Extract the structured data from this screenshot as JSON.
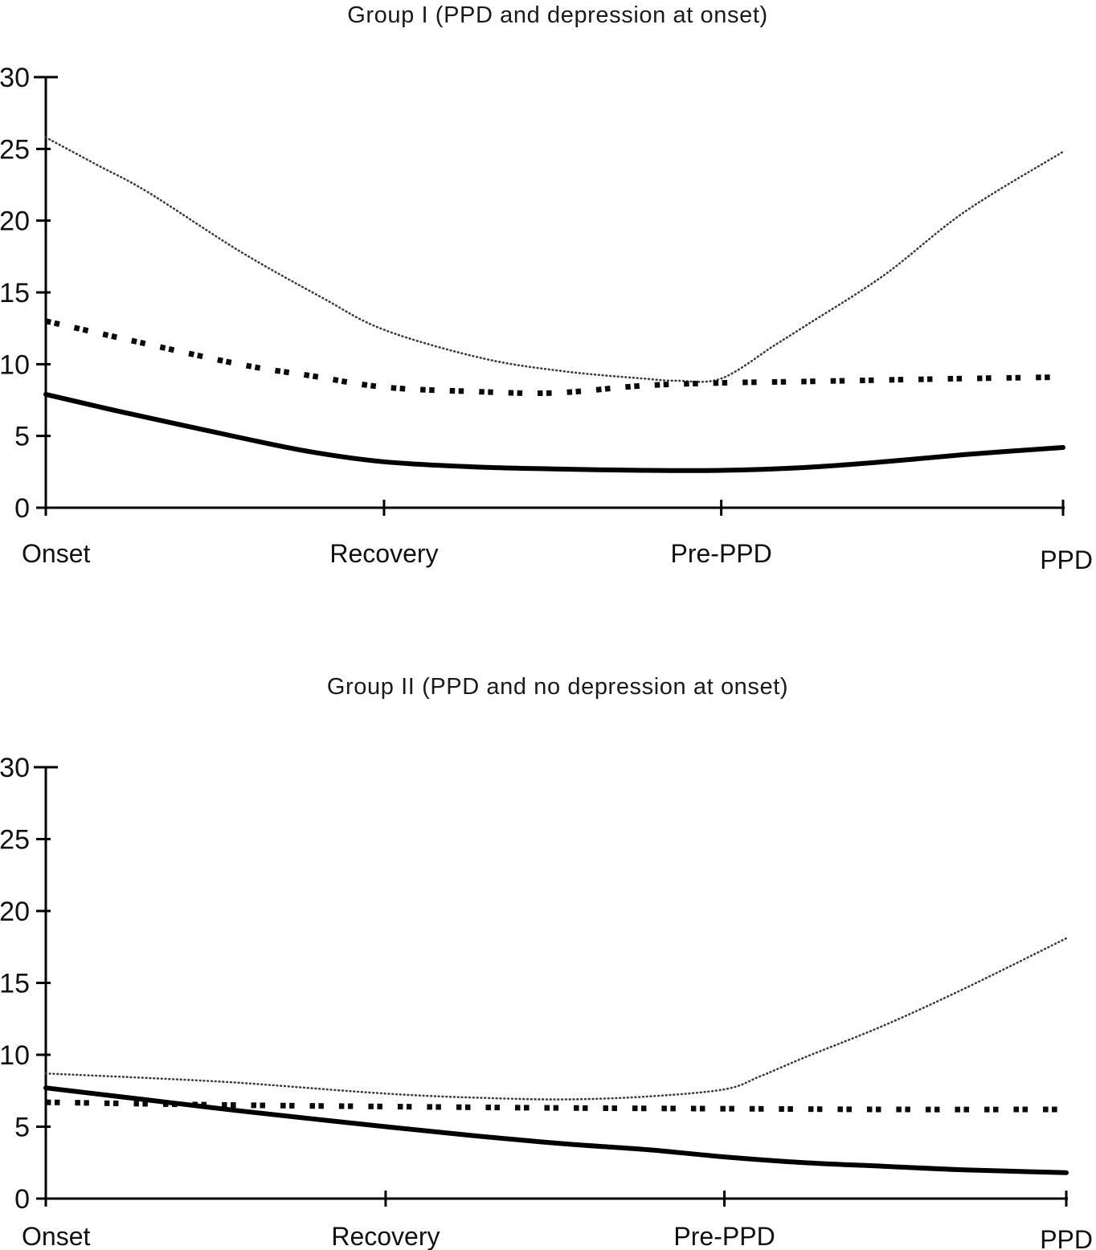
{
  "figure": {
    "description": "Two stacked line charts comparing symptom score trajectories",
    "background": "#ffffff"
  },
  "colors": {
    "axis": "#000000",
    "dotted_series": "#3d3d3d",
    "dashed_series": "#0b0b0b",
    "solid_series": "#000000",
    "background": "#ffffff"
  },
  "chart_data": [
    {
      "type": "line",
      "title": "Group I (PPD and depression at onset)",
      "xlabel": "",
      "ylabel": "",
      "ylim": [
        0,
        30
      ],
      "yticks": [
        0,
        5,
        10,
        15,
        20,
        25,
        30
      ],
      "grid": false,
      "legend": "none",
      "x_axis_labels": [
        {
          "label": "Onset",
          "pos": 0
        },
        {
          "label": "Recovery",
          "pos": 0.3325
        },
        {
          "label": "Pre-PPD",
          "pos": 0.664
        },
        {
          "label": "PPD",
          "pos": 1
        }
      ],
      "series": [
        {
          "name": "dotted curve",
          "style": "dotted",
          "points": [
            [
              0,
              25.8
            ],
            [
              0.05,
              23.9
            ],
            [
              0.1,
              22.0
            ],
            [
              0.19,
              17.9
            ],
            [
              0.27,
              14.7
            ],
            [
              0.3325,
              12.4
            ],
            [
              0.43,
              10.4
            ],
            [
              0.51,
              9.5
            ],
            [
              0.587,
              9.0
            ],
            [
              0.62,
              8.85
            ],
            [
              0.664,
              9.0
            ],
            [
              0.716,
              11.3
            ],
            [
              0.745,
              12.6
            ],
            [
              0.824,
              16.2
            ],
            [
              0.903,
              20.6
            ],
            [
              1,
              24.8
            ]
          ]
        },
        {
          "name": "dashed x curve",
          "style": "dashed",
          "points": [
            [
              0,
              13.0
            ],
            [
              0.081,
              11.7
            ],
            [
              0.19,
              10.0
            ],
            [
              0.26,
              9.2
            ],
            [
              0.3325,
              8.4
            ],
            [
              0.42,
              8.1
            ],
            [
              0.5,
              8.0
            ],
            [
              0.587,
              8.5
            ],
            [
              0.664,
              8.7
            ],
            [
              0.75,
              8.8
            ],
            [
              0.824,
              8.9
            ],
            [
              0.903,
              9.0
            ],
            [
              1,
              9.1
            ]
          ]
        },
        {
          "name": "solid curve",
          "style": "solid",
          "points": [
            [
              0,
              7.9
            ],
            [
              0.073,
              6.7
            ],
            [
              0.19,
              4.9
            ],
            [
              0.26,
              3.9
            ],
            [
              0.3325,
              3.2
            ],
            [
              0.42,
              2.85
            ],
            [
              0.5,
              2.7
            ],
            [
              0.587,
              2.6
            ],
            [
              0.664,
              2.6
            ],
            [
              0.745,
              2.8
            ],
            [
              0.824,
              3.2
            ],
            [
              0.903,
              3.7
            ],
            [
              1,
              4.2
            ]
          ]
        }
      ]
    },
    {
      "type": "line",
      "title": "Group II (PPD and no depression at onset)",
      "xlabel": "",
      "ylabel": "",
      "ylim": [
        0,
        30
      ],
      "yticks": [
        0,
        5,
        10,
        15,
        20,
        25,
        30
      ],
      "grid": false,
      "legend": "none",
      "x_axis_labels": [
        {
          "label": "Onset",
          "pos": 0
        },
        {
          "label": "Recovery",
          "pos": 0.333
        },
        {
          "label": "Pre-PPD",
          "pos": 0.665
        },
        {
          "label": "PPD",
          "pos": 1
        }
      ],
      "series": [
        {
          "name": "dotted curve",
          "style": "dotted",
          "points": [
            [
              0,
              8.7
            ],
            [
              0.095,
              8.4
            ],
            [
              0.19,
              8.05
            ],
            [
              0.333,
              7.3
            ],
            [
              0.43,
              7.0
            ],
            [
              0.51,
              6.9
            ],
            [
              0.59,
              7.1
            ],
            [
              0.665,
              7.6
            ],
            [
              0.7,
              8.5
            ],
            [
              0.743,
              9.8
            ],
            [
              0.82,
              12.0
            ],
            [
              0.9,
              14.6
            ],
            [
              1,
              18.1
            ]
          ]
        },
        {
          "name": "dashed x curve",
          "style": "dashed",
          "points": [
            [
              0,
              6.7
            ],
            [
              0.19,
              6.5
            ],
            [
              0.333,
              6.4
            ],
            [
              0.51,
              6.3
            ],
            [
              0.665,
              6.25
            ],
            [
              0.83,
              6.2
            ],
            [
              1,
              6.2
            ]
          ]
        },
        {
          "name": "solid curve",
          "style": "solid",
          "points": [
            [
              0,
              7.7
            ],
            [
              0.095,
              6.9
            ],
            [
              0.19,
              6.1
            ],
            [
              0.333,
              5.0
            ],
            [
              0.43,
              4.3
            ],
            [
              0.51,
              3.8
            ],
            [
              0.59,
              3.4
            ],
            [
              0.665,
              2.9
            ],
            [
              0.743,
              2.5
            ],
            [
              0.82,
              2.25
            ],
            [
              0.9,
              2.0
            ],
            [
              1,
              1.8
            ]
          ]
        }
      ]
    }
  ]
}
